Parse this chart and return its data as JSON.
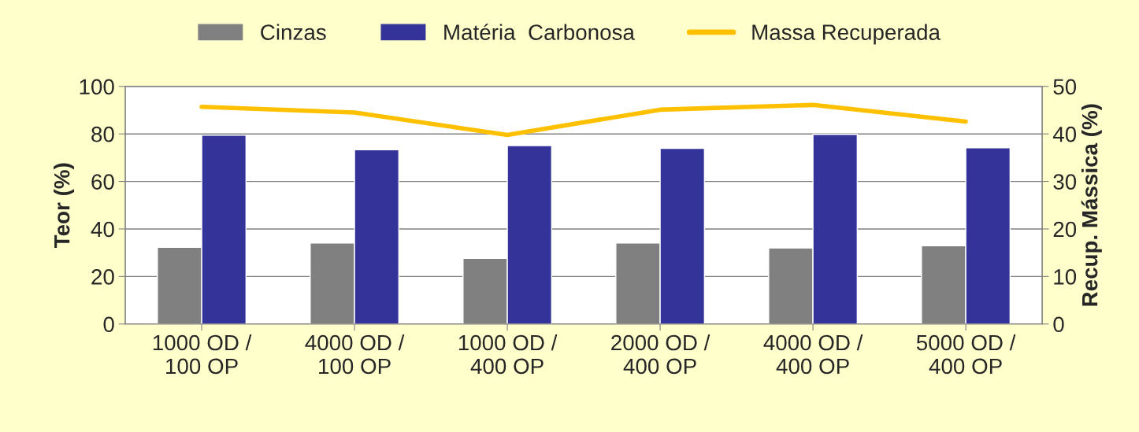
{
  "chart_data": {
    "type": "bar",
    "categories": [
      "1000 OD /\n100 OP",
      "4000 OD /\n100 OP",
      "1000 OD /\n400 OP",
      "2000 OD /\n400 OP",
      "4000 OD /\n400 OP",
      "5000 OD /\n400 OP"
    ],
    "series": [
      {
        "name": "Cinzas",
        "color": "#808080",
        "values": [
          32.3,
          34.1,
          27.6,
          34.1,
          32.0,
          32.9
        ]
      },
      {
        "name": "Matéria  Carbonosa",
        "color": "#333399",
        "values": [
          79.5,
          73.3,
          75.1,
          73.9,
          79.8,
          74.2
        ]
      },
      {
        "name": "Massa Recuperada",
        "type": "line",
        "axis": "y2",
        "color": "#ffc000",
        "values": [
          45.7,
          44.5,
          39.8,
          45.1,
          46.1,
          42.6
        ]
      }
    ],
    "ylabel": "Teor (%)",
    "y2label": "Recup. Mássica (%)",
    "ylim": [
      0,
      100
    ],
    "yticks": [
      0,
      20,
      40,
      60,
      80,
      100
    ],
    "y2lim": [
      0,
      50
    ],
    "y2ticks": [
      0,
      10,
      20,
      30,
      40,
      50
    ],
    "grid": "y",
    "legend": "top"
  }
}
